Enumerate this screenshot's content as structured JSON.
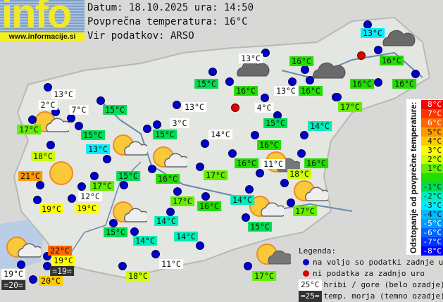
{
  "logo": {
    "text": "info",
    "url": "www.informacije.si"
  },
  "header": {
    "date_line": "Datum: 18.10.2025 ura: 14:50",
    "avg_line": "Povprečna temperatura: 16°C",
    "source_line": "Vir podatkov: ARSO"
  },
  "colors": {
    "station_available": "#0000cc",
    "station_missing": "#dd0000",
    "mountain_bg": "#ffffff",
    "sea_bg": "#333333"
  },
  "stations": [
    {
      "t": "13°C",
      "c": "#00eeff"
    },
    {
      "t": "13°C",
      "c": "#ffffff"
    },
    {
      "t": "16°C",
      "c": "#22dd00"
    },
    {
      "t": "16°C",
      "c": "#22dd00"
    },
    {
      "t": "15°C",
      "c": "#00dd55"
    },
    {
      "t": "16°C",
      "c": "#22dd00"
    },
    {
      "t": "13°C",
      "c": "#ffffff"
    },
    {
      "t": "16°C",
      "c": "#22dd00"
    },
    {
      "t": "16°C",
      "c": "#22dd00"
    },
    {
      "t": "16°C",
      "c": "#22dd00"
    },
    {
      "t": "13°C",
      "c": "#ffffff"
    },
    {
      "t": "2°C",
      "c": "#ffffff"
    },
    {
      "t": "7°C",
      "c": "#ffffff"
    },
    {
      "t": "15°C",
      "c": "#00dd55"
    },
    {
      "t": "13°C",
      "c": "#ffffff"
    },
    {
      "t": "4°C",
      "c": "#ffffff"
    },
    {
      "t": "17°C",
      "c": "#66ee00"
    },
    {
      "t": "17°C",
      "c": "#66ee00"
    },
    {
      "t": "15°C",
      "c": "#00dd55"
    },
    {
      "t": "14°C",
      "c": "#00eebb"
    },
    {
      "t": "3°C",
      "c": "#ffffff"
    },
    {
      "t": "15°C",
      "c": "#00dd55"
    },
    {
      "t": "15°C",
      "c": "#00dd55"
    },
    {
      "t": "14°C",
      "c": "#ffffff"
    },
    {
      "t": "13°C",
      "c": "#00eeff"
    },
    {
      "t": "16°C",
      "c": "#22dd00"
    },
    {
      "t": "18°C",
      "c": "#ccff00"
    },
    {
      "t": "16°C",
      "c": "#22dd00"
    },
    {
      "t": "11°C",
      "c": "#ffffff"
    },
    {
      "t": "16°C",
      "c": "#22dd00"
    },
    {
      "t": "18°C",
      "c": "#ccff00"
    },
    {
      "t": "15°C",
      "c": "#00dd55"
    },
    {
      "t": "16°C",
      "c": "#22dd00"
    },
    {
      "t": "17°C",
      "c": "#66ee00"
    },
    {
      "t": "21°C",
      "c": "#ff9900"
    },
    {
      "t": "17°C",
      "c": "#66ee00"
    },
    {
      "t": "12°C",
      "c": "#ffffff"
    },
    {
      "t": "17°C",
      "c": "#66ee00"
    },
    {
      "t": "16°C",
      "c": "#22dd00"
    },
    {
      "t": "14°C",
      "c": "#00eebb"
    },
    {
      "t": "17°C",
      "c": "#66ee00"
    },
    {
      "t": "19°C",
      "c": "#ffff00"
    },
    {
      "t": "19°C",
      "c": "#ffff00"
    },
    {
      "t": "14°C",
      "c": "#00eebb"
    },
    {
      "t": "15°C",
      "c": "#00dd55"
    },
    {
      "t": "15°C",
      "c": "#00dd55"
    },
    {
      "t": "14°C",
      "c": "#00eebb"
    },
    {
      "t": "14°C",
      "c": "#00eebb"
    },
    {
      "t": "22°C",
      "c": "#ff6600"
    },
    {
      "t": "19°C",
      "c": "#ffff00"
    },
    {
      "t": "11°C",
      "c": "#ffffff"
    },
    {
      "t": "19°C",
      "c": "#ffffff"
    },
    {
      "t": "=19=",
      "c": "#333333",
      "dark": true
    },
    {
      "t": "20°C",
      "c": "#ffcc00"
    },
    {
      "t": "=20=",
      "c": "#333333",
      "dark": true
    },
    {
      "t": "18°C",
      "c": "#ccff00"
    },
    {
      "t": "17°C",
      "c": "#66ee00"
    }
  ],
  "weather_icons": [
    "sun-cloud-icon",
    "cloud-dark-icon",
    "sun-icon",
    "sun-dark-cloud-icon"
  ],
  "scale": {
    "title": "Odstopanje od povprečne temperature:",
    "rows": [
      {
        "t": "8°C",
        "c": "#ff0000",
        "fg": "#ffffff"
      },
      {
        "t": "7°C",
        "c": "#ff3300",
        "fg": "#ffffff"
      },
      {
        "t": "6°C",
        "c": "#ff6600",
        "fg": "#ffffff"
      },
      {
        "t": "5°C",
        "c": "#ff9900",
        "fg": "#111111"
      },
      {
        "t": "4°C",
        "c": "#ffcc00",
        "fg": "#111111"
      },
      {
        "t": "3°C",
        "c": "#ffff00",
        "fg": "#111111"
      },
      {
        "t": "2°C",
        "c": "#ccff00",
        "fg": "#111111"
      },
      {
        "t": "1°C",
        "c": "#66ee00",
        "fg": "#111111"
      },
      {
        "t": "",
        "c": "#22dd00",
        "fg": "#111111"
      },
      {
        "t": "-1°C",
        "c": "#00dd55",
        "fg": "#111111"
      },
      {
        "t": "-2°C",
        "c": "#00eebb",
        "fg": "#111111"
      },
      {
        "t": "-3°C",
        "c": "#00eeff",
        "fg": "#111111"
      },
      {
        "t": "-4°C",
        "c": "#00bbff",
        "fg": "#111111"
      },
      {
        "t": "-5°C",
        "c": "#0099ff",
        "fg": "#ffffff"
      },
      {
        "t": "-6°C",
        "c": "#0066ff",
        "fg": "#ffffff"
      },
      {
        "t": "-7°C",
        "c": "#0033ff",
        "fg": "#ffffff"
      },
      {
        "t": "-8°C",
        "c": "#0000ff",
        "fg": "#ffffff"
      }
    ]
  },
  "legend": {
    "title": "Legenda:",
    "available": "na voljo so podatki zadnje ure",
    "missing": "ni podatka za zadnjo uro",
    "mountain_sample": "25°C",
    "mountain_text": "hribi / gore (belo ozadje)",
    "sea_sample": "=25=",
    "sea_text": "temp. morja (temno ozadje)"
  }
}
